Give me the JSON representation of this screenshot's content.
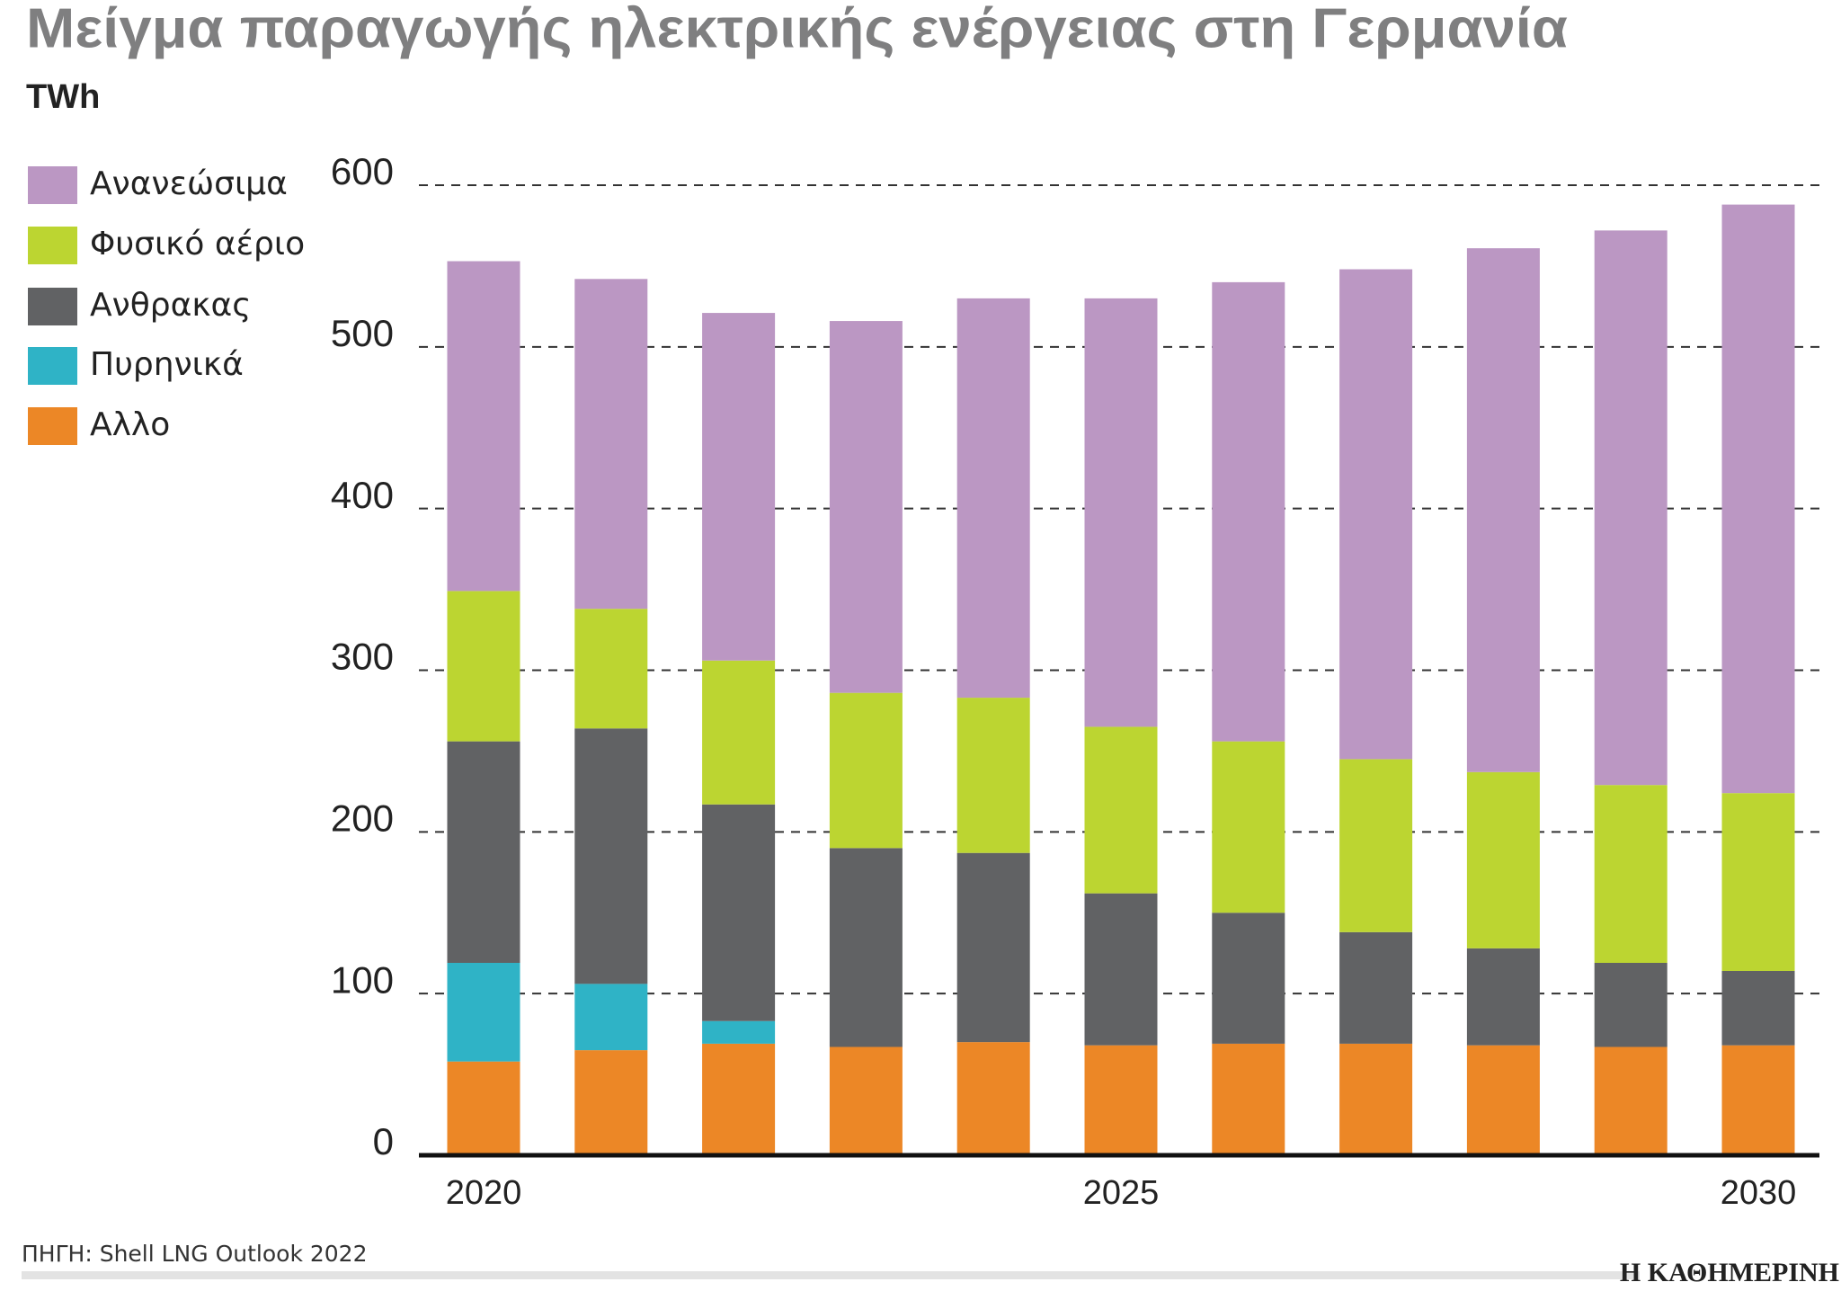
{
  "chart_data": {
    "type": "stacked_bar",
    "title": "Μείγμα παραγωγής ηλεκτρικής ενέργειας στη Γερμανία",
    "subtitle": "TWh",
    "categories": [
      "2020",
      null,
      null,
      null,
      null,
      "2025",
      null,
      null,
      null,
      null,
      "2030"
    ],
    "series": [
      {
        "name": "Ανανεώσιμα",
        "color": "#bb97c3",
        "values": [
          204,
          204,
          215,
          230,
          247,
          265,
          284,
          303,
          324,
          343,
          364
        ]
      },
      {
        "name": "Φυσικό αέριο",
        "color": "#bcd531",
        "values": [
          93,
          74,
          89,
          96,
          96,
          103,
          106,
          107,
          109,
          110,
          110
        ]
      },
      {
        "name": "Ανθρακας",
        "color": "#616264",
        "values": [
          137,
          158,
          134,
          123,
          117,
          94,
          81,
          69,
          60,
          52,
          46
        ]
      },
      {
        "name": "Πυρηνικά",
        "color": "#2fb3c6",
        "values": [
          61,
          41,
          14,
          0,
          0,
          0,
          0,
          0,
          0,
          0,
          0
        ]
      },
      {
        "name": "Αλλο",
        "color": "#ec8726",
        "values": [
          58,
          65,
          69,
          67,
          70,
          68,
          69,
          69,
          68,
          67,
          68
        ]
      }
    ],
    "ylim": [
      0,
      600
    ],
    "yticks": [
      0,
      100,
      200,
      300,
      400,
      500,
      600
    ],
    "grid": true,
    "source": "ΠΗΓΗ: Shell LNG Outlook 2022",
    "publisher": "Η ΚΑΘΗΜΕΡΙΝΗ"
  }
}
